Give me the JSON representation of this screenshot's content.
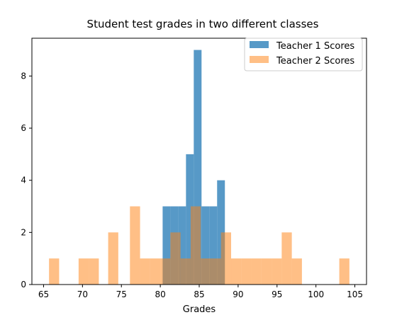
{
  "chart_data": {
    "type": "bar",
    "title": "Student test grades in two different classes",
    "xlabel": "Grades",
    "ylabel": "",
    "xlim": [
      63.5,
      106.5
    ],
    "ylim": [
      0,
      9.45
    ],
    "xticks": [
      65,
      70,
      75,
      80,
      85,
      90,
      95,
      100,
      105
    ],
    "yticks": [
      0,
      2,
      4,
      6,
      8
    ],
    "grid": false,
    "legend_position": "top-right",
    "series": [
      {
        "name": "Teacher 1 Scores",
        "color": "#1f77b4",
        "opacity": 0.75,
        "bins": [
          {
            "x0": 80.3,
            "x1": 81.3,
            "count": 3
          },
          {
            "x0": 81.3,
            "x1": 82.3,
            "count": 3
          },
          {
            "x0": 82.3,
            "x1": 83.3,
            "count": 3
          },
          {
            "x0": 83.3,
            "x1": 84.3,
            "count": 5
          },
          {
            "x0": 84.3,
            "x1": 85.3,
            "count": 9
          },
          {
            "x0": 85.3,
            "x1": 86.3,
            "count": 3
          },
          {
            "x0": 86.3,
            "x1": 87.3,
            "count": 3
          },
          {
            "x0": 87.3,
            "x1": 88.3,
            "count": 4
          }
        ]
      },
      {
        "name": "Teacher 2 Scores",
        "color": "#ff7f0e",
        "opacity": 0.5,
        "bins": [
          {
            "x0": 65.7,
            "x1": 67.0,
            "count": 1
          },
          {
            "x0": 69.5,
            "x1": 70.8,
            "count": 1
          },
          {
            "x0": 70.8,
            "x1": 72.1,
            "count": 1
          },
          {
            "x0": 73.3,
            "x1": 74.6,
            "count": 2
          },
          {
            "x0": 76.1,
            "x1": 77.4,
            "count": 3
          },
          {
            "x0": 77.4,
            "x1": 78.7,
            "count": 1
          },
          {
            "x0": 78.7,
            "x1": 80.0,
            "count": 1
          },
          {
            "x0": 80.0,
            "x1": 81.3,
            "count": 1
          },
          {
            "x0": 81.3,
            "x1": 82.6,
            "count": 2
          },
          {
            "x0": 82.6,
            "x1": 83.9,
            "count": 1
          },
          {
            "x0": 83.9,
            "x1": 85.2,
            "count": 3
          },
          {
            "x0": 85.2,
            "x1": 86.5,
            "count": 1
          },
          {
            "x0": 86.5,
            "x1": 87.8,
            "count": 1
          },
          {
            "x0": 87.8,
            "x1": 89.1,
            "count": 2
          },
          {
            "x0": 89.1,
            "x1": 90.4,
            "count": 1
          },
          {
            "x0": 90.4,
            "x1": 91.7,
            "count": 1
          },
          {
            "x0": 91.7,
            "x1": 93.0,
            "count": 1
          },
          {
            "x0": 93.0,
            "x1": 94.3,
            "count": 1
          },
          {
            "x0": 94.3,
            "x1": 95.6,
            "count": 1
          },
          {
            "x0": 95.6,
            "x1": 96.9,
            "count": 2
          },
          {
            "x0": 96.9,
            "x1": 98.2,
            "count": 1
          },
          {
            "x0": 103.0,
            "x1": 104.3,
            "count": 1
          }
        ]
      }
    ]
  }
}
